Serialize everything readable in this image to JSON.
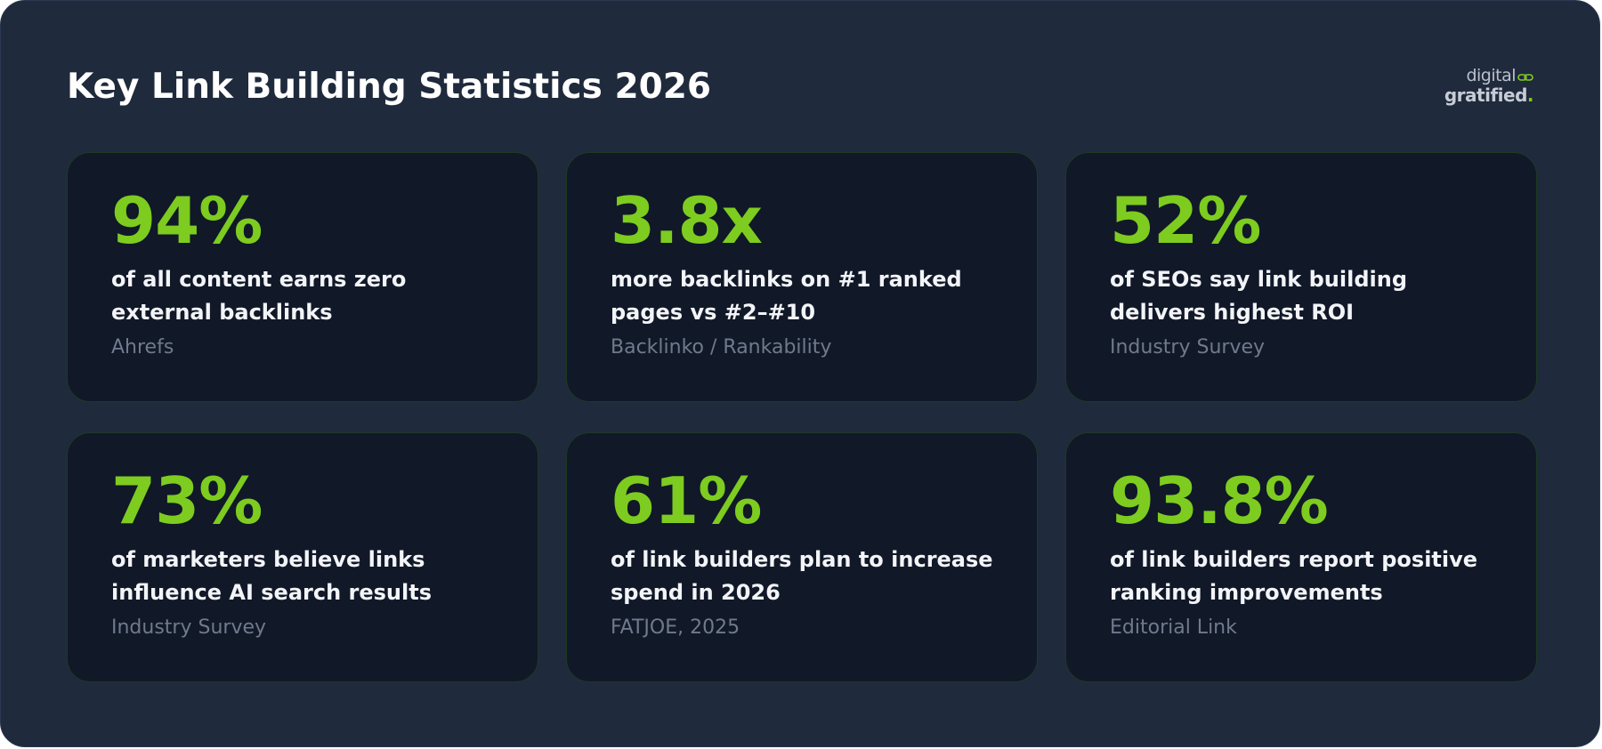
{
  "header": {
    "title": "Key Link Building Statistics 2026"
  },
  "logo": {
    "line1": "digital",
    "line2": "gratified",
    "dot": ".",
    "icon": "chain-link-icon",
    "accent_color": "#7dcc1f"
  },
  "cards": [
    {
      "stat": "94%",
      "description": "of all content earns zero external backlinks",
      "source": "Ahrefs"
    },
    {
      "stat": "3.8x",
      "description": "more backlinks on #1 ranked pages vs #2–#10",
      "source": "Backlinko / Rankability"
    },
    {
      "stat": "52%",
      "description": "of SEOs say link building delivers highest ROI",
      "source": "Industry Survey"
    },
    {
      "stat": "73%",
      "description": "of marketers believe links influence AI search results",
      "source": "Industry Survey"
    },
    {
      "stat": "61%",
      "description": "of link builders plan to increase spend in 2026",
      "source": "FATJOE, 2025"
    },
    {
      "stat": "93.8%",
      "description": "of link builders report positive ranking improvements",
      "source": "Editorial Link"
    }
  ],
  "colors": {
    "background": "#1f2a3c",
    "card_background": "#111828",
    "stat": "#7dcc1f",
    "description": "#f2f4f7",
    "source": "#6f7a8d"
  }
}
